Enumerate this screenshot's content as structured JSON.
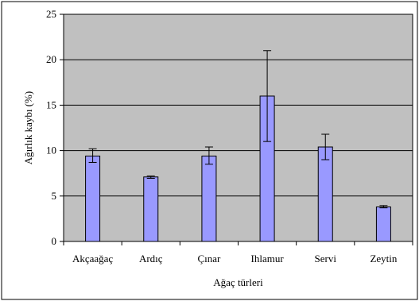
{
  "chart_data": {
    "type": "bar",
    "title": "",
    "xlabel": "Ağaç türleri",
    "ylabel": "Ağırlık kaybı (%)",
    "categories": [
      "Akçaağaç",
      "Ardıç",
      "Çınar",
      "Ihlamur",
      "Servi",
      "Zeytin"
    ],
    "values": [
      9.4,
      7.1,
      9.4,
      16.0,
      10.4,
      3.8
    ],
    "error_low": [
      8.7,
      6.95,
      8.5,
      11.0,
      9.0,
      3.7
    ],
    "error_high": [
      10.2,
      7.2,
      10.4,
      21.0,
      11.8,
      3.95
    ],
    "ylim": [
      0,
      25
    ],
    "yticks": [
      0,
      5,
      10,
      15,
      20,
      25
    ],
    "grid": true,
    "legend": "none",
    "colors": {
      "bar_fill": "#9999ff",
      "bar_stroke": "#000000",
      "plot_background": "#c0c0c0",
      "gridline": "#000000",
      "frame": "#000000"
    }
  }
}
